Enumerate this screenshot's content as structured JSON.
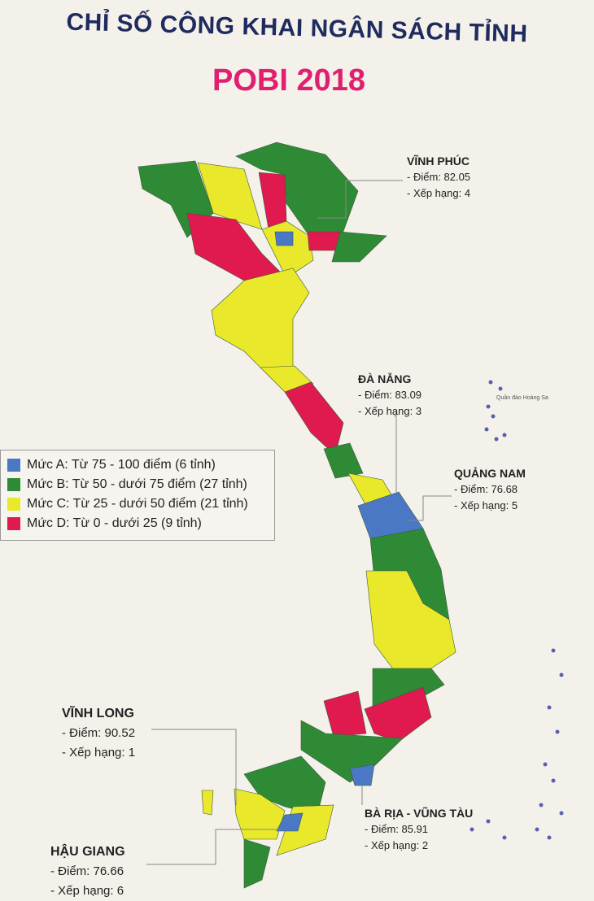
{
  "title": {
    "line1": "CHỈ SỐ CÔNG KHAI NGÂN SÁCH TỈNH",
    "line2": "POBI 2018"
  },
  "colors": {
    "level_a": "#4a78c4",
    "level_b": "#2f8a36",
    "level_c": "#e9e82a",
    "level_d": "#e0194f",
    "title": "#1f2a5e",
    "subtitle": "#e0206e"
  },
  "legend": [
    {
      "label": "Mức A: Từ 75 - 100 điểm (6 tỉnh)",
      "color": "#4a78c4"
    },
    {
      "label": "Mức B: Từ 50 - dưới 75 điểm (27 tỉnh)",
      "color": "#2f8a36"
    },
    {
      "label": "Mức C: Từ 25 - dưới 50 điểm (21 tỉnh)",
      "color": "#e9e82a"
    },
    {
      "label": "Mức D: Từ 0 - dưới 25 (9 tỉnh)",
      "color": "#e0194f"
    }
  ],
  "callouts": [
    {
      "name": "VĨNH PHÚC",
      "score": "- Điểm: 82.05",
      "rank": "- Xếp hạng: 4"
    },
    {
      "name": "ĐÀ NẴNG",
      "score": "- Điểm: 83.09",
      "rank": "- Xếp hạng: 3"
    },
    {
      "name": "QUẢNG NAM",
      "score": "- Điểm: 76.68",
      "rank": "- Xếp hạng: 5"
    },
    {
      "name": "VĨNH LONG",
      "score": "- Điểm: 90.52",
      "rank": "- Xếp hạng: 1"
    },
    {
      "name": "HẬU GIANG",
      "score": "- Điểm: 76.66",
      "rank": "- Xếp hạng: 6"
    },
    {
      "name": "BÀ RỊA - VŨNG TÀU",
      "score": "- Điểm: 85.91",
      "rank": "- Xếp hạng: 2"
    }
  ],
  "archipelago_label": "Quần đảo Hoàng Sa"
}
